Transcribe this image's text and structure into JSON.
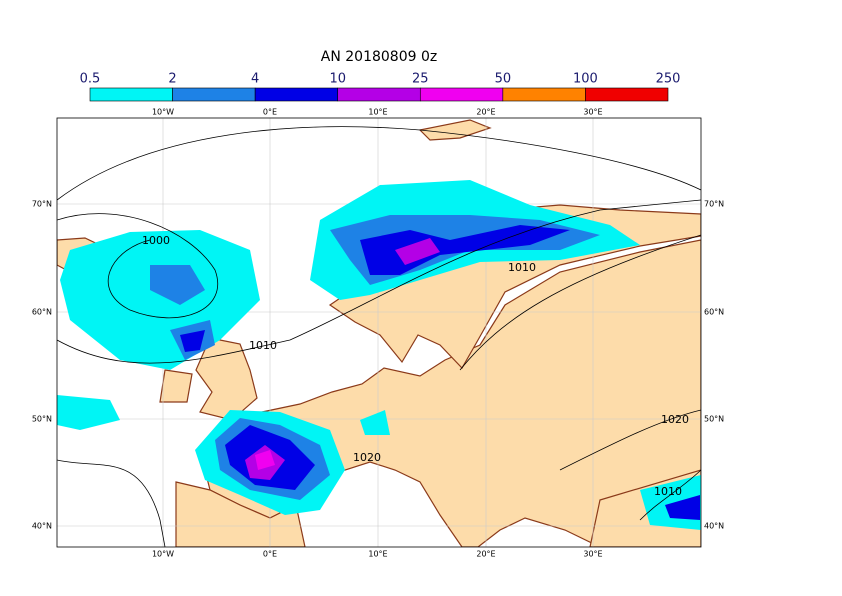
{
  "title": "AN  20180809 0z",
  "colorbar": {
    "levels": [
      0.5,
      2,
      4,
      10,
      25,
      50,
      100,
      250
    ],
    "colors": [
      "#00f5f5",
      "#1e82e6",
      "#0000e6",
      "#b400e6",
      "#f000f0",
      "#ff8200",
      "#f00000"
    ]
  },
  "lon_labels": {
    "top": [
      "10°W",
      "0°E",
      "10°E",
      "20°E",
      "30°E"
    ],
    "bottom": [
      "10°W",
      "0°E",
      "10°E",
      "20°E",
      "30°E"
    ]
  },
  "lat_labels": {
    "left": [
      "70°N",
      "60°N",
      "50°N",
      "40°N"
    ],
    "right": [
      "70°N",
      "60°N",
      "50°N",
      "40°N"
    ]
  },
  "contour_labels": [
    "1000",
    "1010",
    "1010",
    "1020",
    "1020",
    "1010"
  ]
}
